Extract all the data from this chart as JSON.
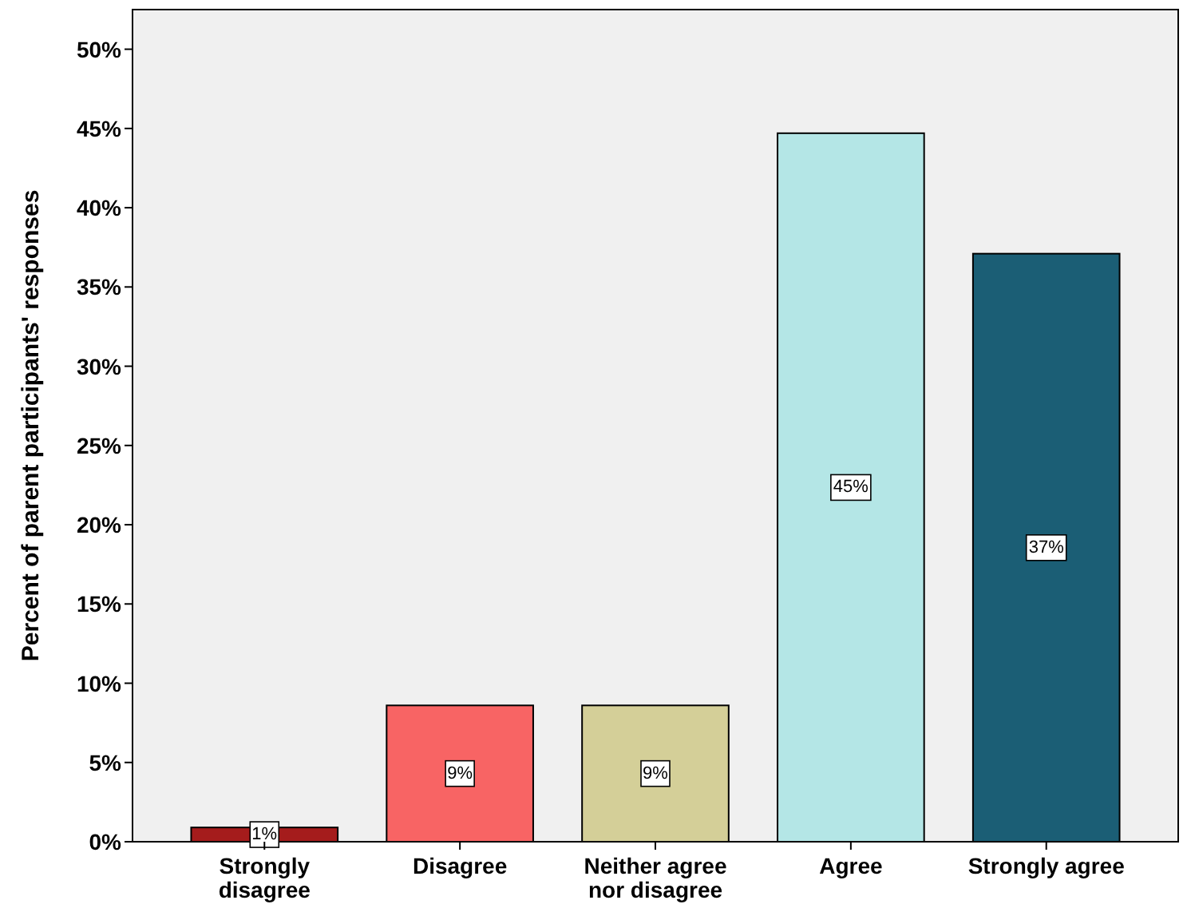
{
  "chart_data": {
    "type": "bar",
    "ylabel": "Percent of parent participants' responses",
    "categories": [
      "Strongly disagree",
      "Disagree",
      "Neither agree nor disagree",
      "Agree",
      "Strongly agree"
    ],
    "values": [
      0.9,
      8.6,
      8.6,
      44.7,
      37.1
    ],
    "colors": [
      "#a51c1c",
      "#f86464",
      "#d4cf98",
      "#b4e6e6",
      "#1b5e75"
    ],
    "value_labels": [
      "1%",
      "9%",
      "9%",
      "45%",
      "37%"
    ],
    "ylim": [
      0,
      52.5
    ],
    "yticks": [
      {
        "value": 0,
        "label": "0%"
      },
      {
        "value": 5,
        "label": "5%"
      },
      {
        "value": 10,
        "label": "10%"
      },
      {
        "value": 15,
        "label": "15%"
      },
      {
        "value": 20,
        "label": "20%"
      },
      {
        "value": 25,
        "label": "25%"
      },
      {
        "value": 30,
        "label": "30%"
      },
      {
        "value": 35,
        "label": "35%"
      },
      {
        "value": 40,
        "label": "40%"
      },
      {
        "value": 45,
        "label": "45%"
      },
      {
        "value": 50,
        "label": "50%"
      }
    ],
    "grid": false
  }
}
